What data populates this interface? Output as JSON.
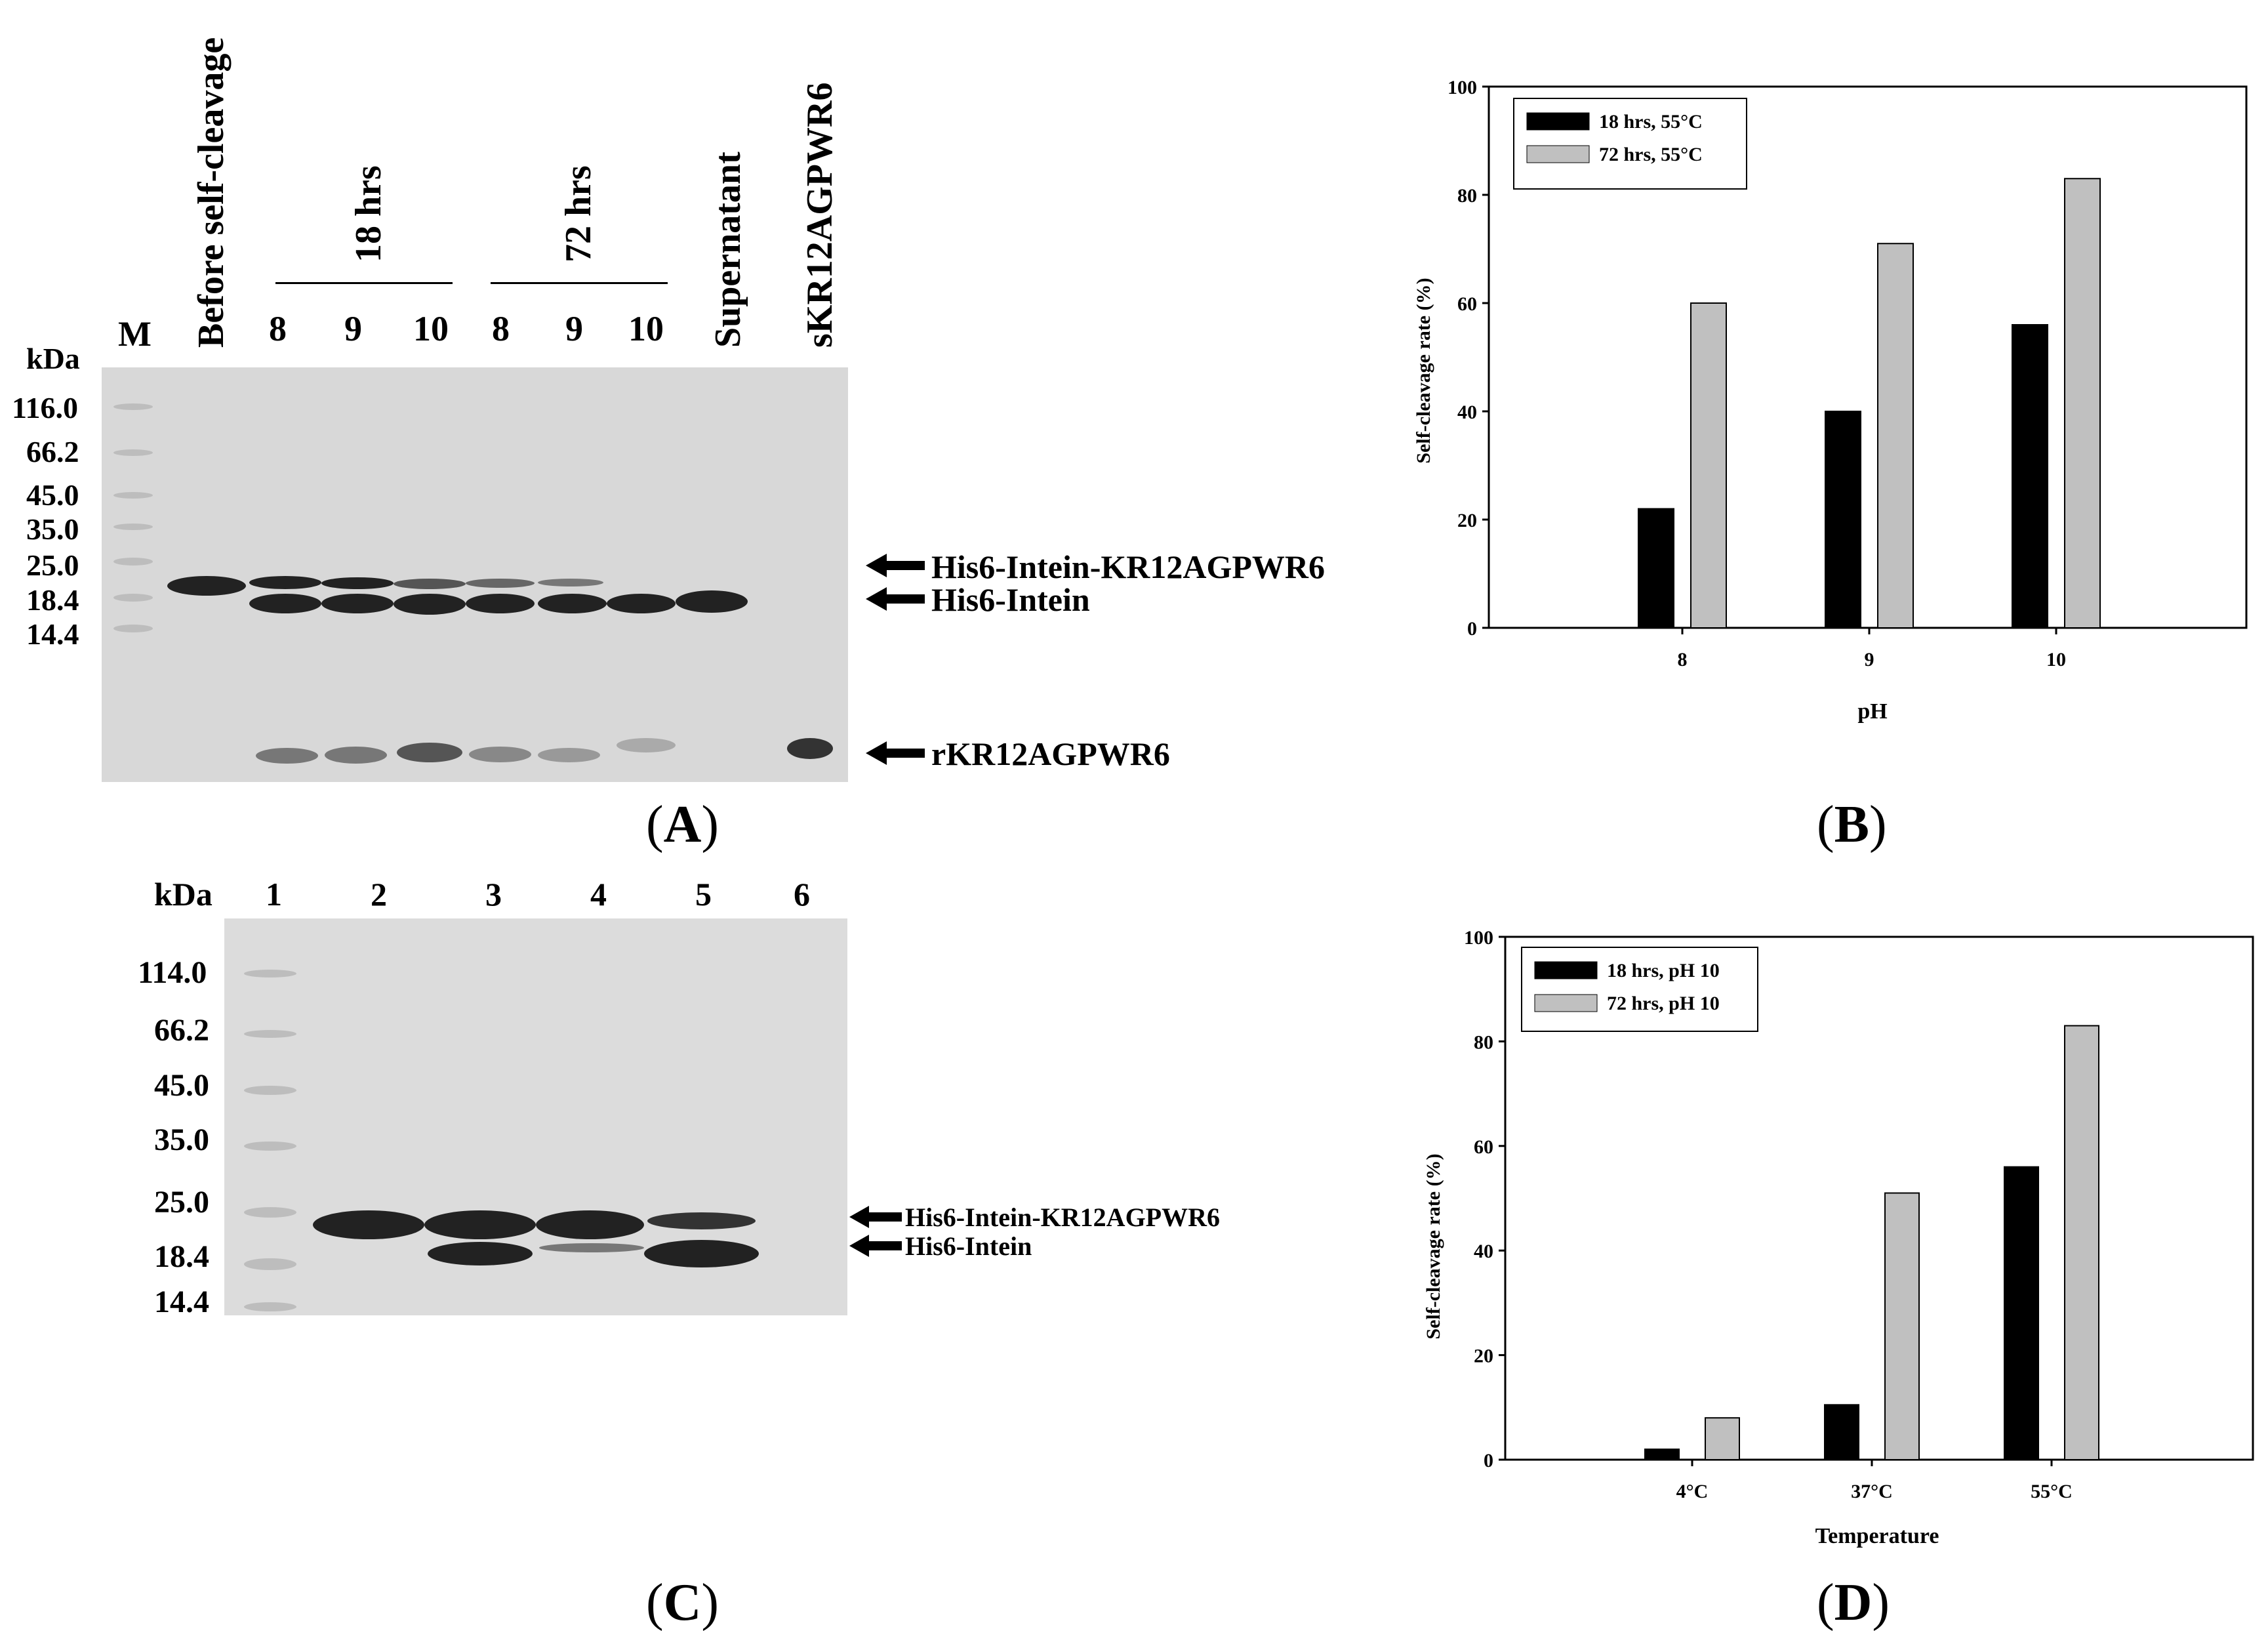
{
  "panel_A": {
    "letter": "A",
    "marker_label": "M",
    "kda_label": "kDa",
    "ladder": [
      "116.0",
      "66.2",
      "45.0",
      "35.0",
      "25.0",
      "18.4",
      "14.4"
    ],
    "lane_headers": [
      "Before self-cleavage",
      "Supernatant",
      "sKR12AGPWR6"
    ],
    "group_18": "18 hrs",
    "group_72": "72 hrs",
    "lane_numbers": [
      "8",
      "9",
      "10",
      "8",
      "9",
      "10"
    ],
    "arrows": [
      "His6-Intein-KR12AGPWR6",
      "His6-Intein",
      "rKR12AGPWR6"
    ]
  },
  "panel_C": {
    "letter": "C",
    "kda_label": "kDa",
    "ladder": [
      "114.0",
      "66.2",
      "45.0",
      "35.0",
      "25.0",
      "18.4",
      "14.4"
    ],
    "lane_numbers": [
      "1",
      "2",
      "3",
      "4",
      "5",
      "6"
    ],
    "arrows": [
      "His6-Intein-KR12AGPWR6",
      "His6-Intein"
    ]
  },
  "panel_B": {
    "letter": "B"
  },
  "panel_D": {
    "letter": "D"
  },
  "chart_data": [
    {
      "type": "bar",
      "categories": [
        "8",
        "9",
        "10"
      ],
      "series": [
        {
          "name": "18 hrs, 55°C",
          "values": [
            22,
            40,
            56
          ],
          "color": "#000000"
        },
        {
          "name": "72 hrs, 55°C",
          "values": [
            60,
            71,
            83
          ],
          "color": "#c0c0c0"
        }
      ],
      "title": "",
      "xlabel": "pH",
      "ylabel": "Self-cleavage rate (%)",
      "ylim": [
        0,
        100
      ],
      "yticks": [
        "0",
        "20",
        "40",
        "60",
        "80",
        "100"
      ],
      "legend": "top-left",
      "grid": false
    },
    {
      "type": "bar",
      "categories": [
        "4°C",
        "37°C",
        "55°C"
      ],
      "series": [
        {
          "name": "18 hrs, pH 10",
          "values": [
            2,
            10.5,
            56
          ],
          "color": "#000000"
        },
        {
          "name": "72 hrs, pH 10",
          "values": [
            8,
            51,
            83
          ],
          "color": "#c0c0c0"
        }
      ],
      "title": "",
      "xlabel": "Temperature",
      "ylabel": "Self-cleavage rate (%)",
      "ylim": [
        0,
        100
      ],
      "yticks": [
        "0",
        "20",
        "40",
        "60",
        "80",
        "100"
      ],
      "legend": "top-left",
      "grid": false
    }
  ]
}
